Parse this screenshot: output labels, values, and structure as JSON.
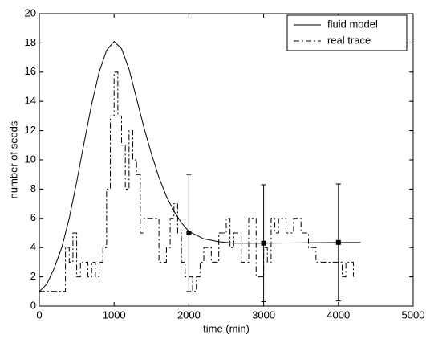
{
  "chart_data": {
    "type": "line",
    "xlabel": "time (min)",
    "ylabel": "number of seeds",
    "xlim": [
      0,
      5000
    ],
    "xticks": [
      0,
      1000,
      2000,
      3000,
      4000,
      5000
    ],
    "ylim": [
      0,
      20
    ],
    "yticks": [
      0,
      2,
      4,
      6,
      8,
      10,
      12,
      14,
      16,
      18,
      20
    ],
    "legend": "upper right",
    "series": [
      {
        "name": "fluid model",
        "color": "#000000",
        "style": "solid",
        "x": [
          0,
          100,
          200,
          300,
          400,
          500,
          600,
          700,
          800,
          900,
          1000,
          1100,
          1200,
          1300,
          1400,
          1500,
          1600,
          1700,
          1800,
          1900,
          2000,
          2200,
          2400,
          2600,
          2800,
          3000,
          3500,
          4000,
          4300
        ],
        "values": [
          1,
          1.5,
          2.6,
          4,
          6,
          8.5,
          11.2,
          13.8,
          16,
          17.5,
          18.1,
          17.6,
          16.2,
          14.2,
          12.2,
          10.4,
          8.8,
          7.5,
          6.5,
          5.7,
          5.1,
          4.6,
          4.4,
          4.3,
          4.3,
          4.3,
          4.32,
          4.35,
          4.35
        ]
      },
      {
        "name": "real trace",
        "color": "#000000",
        "style": "dashdot-step",
        "x": [
          0,
          100,
          200,
          300,
          350,
          400,
          450,
          500,
          550,
          600,
          650,
          700,
          750,
          800,
          850,
          900,
          950,
          1000,
          1050,
          1100,
          1150,
          1200,
          1250,
          1300,
          1350,
          1400,
          1450,
          1500,
          1600,
          1700,
          1750,
          1800,
          1850,
          1900,
          1950,
          2000,
          2050,
          2100,
          2150,
          2200,
          2300,
          2400,
          2500,
          2550,
          2600,
          2700,
          2800,
          2850,
          2900,
          2950,
          3000,
          3050,
          3100,
          3150,
          3200,
          3300,
          3400,
          3500,
          3600,
          3700,
          3800,
          3900,
          4000,
          4050,
          4100,
          4200
        ],
        "values": [
          1,
          1,
          1,
          1,
          4,
          3,
          5,
          2,
          3,
          3,
          2,
          3,
          2,
          3,
          4,
          8,
          13,
          16,
          13,
          11,
          8,
          12,
          10,
          9,
          5,
          6,
          6,
          6,
          3,
          4,
          6,
          7,
          5,
          3,
          2,
          2,
          1,
          2,
          3,
          4,
          3,
          5,
          6,
          4,
          5,
          3,
          6,
          6,
          2,
          2,
          4,
          3,
          6,
          5,
          6,
          5,
          6,
          5,
          4,
          3,
          3,
          3,
          3,
          2,
          3,
          2
        ]
      }
    ],
    "error_points": {
      "x": [
        2000,
        3000,
        4000
      ],
      "values": [
        5,
        4.3,
        4.35
      ],
      "errors": [
        4,
        4,
        4
      ]
    }
  }
}
